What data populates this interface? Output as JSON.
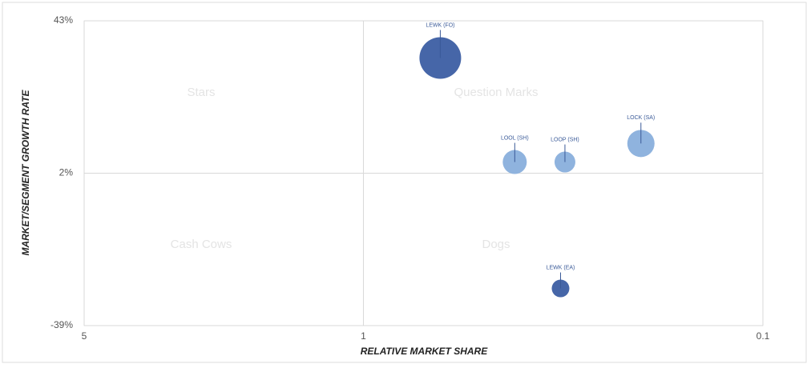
{
  "chart_data": {
    "type": "bubble",
    "x_label": "RELATIVE MARKET SHARE",
    "y_label": "MARKET/SEGMENT GROWTH RATE",
    "quadrants": [
      "Stars",
      "Question Marks",
      "Cash Cows",
      "Dogs"
    ],
    "labels": [
      "LEWK (FO)",
      "LOOL (SH)",
      "LOOP (SH)",
      "LOCK (SA)",
      "LEWK (EA)"
    ],
    "x": [
      0.642,
      0.418,
      0.313,
      0.202,
      0.321
    ],
    "y": [
      33,
      5,
      5,
      10,
      -29
    ],
    "size": [
      676,
      225,
      169,
      289,
      121
    ],
    "colors": [
      "#4666a8",
      "#8fb3de",
      "#8fb3de",
      "#8fb3de",
      "#4666a8"
    ],
    "xscale": "log",
    "xlim": [
      5,
      0.1
    ],
    "xticks": [
      5,
      1,
      0.1
    ],
    "ylim": [
      -39,
      43
    ],
    "yticks": [
      {
        "value": -39,
        "label": "-39%"
      },
      {
        "value": 2,
        "label": "2%"
      },
      {
        "value": 43,
        "label": "43%"
      }
    ],
    "grid": true
  }
}
